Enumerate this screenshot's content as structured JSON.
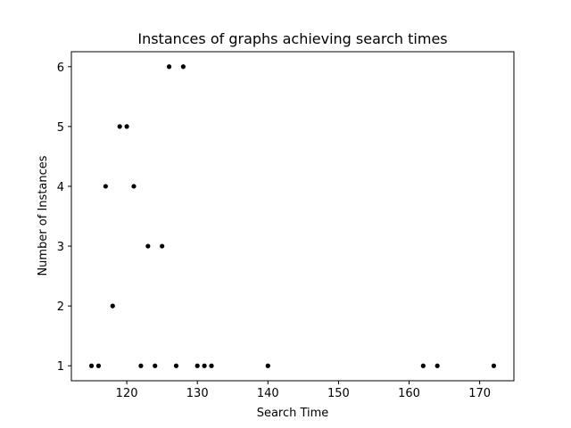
{
  "chart_data": {
    "type": "scatter",
    "title": "Instances of graphs achieving search times",
    "xlabel": "Search Time",
    "ylabel": "Number of Instances",
    "xlim": [
      112.15,
      174.85
    ],
    "ylim": [
      0.75,
      6.25
    ],
    "xticks": [
      120,
      130,
      140,
      150,
      160,
      170
    ],
    "yticks": [
      1,
      2,
      3,
      4,
      5,
      6
    ],
    "grid": false,
    "marker_color": "#000000",
    "points": [
      {
        "x": 115,
        "y": 1
      },
      {
        "x": 116,
        "y": 1
      },
      {
        "x": 117,
        "y": 4
      },
      {
        "x": 118,
        "y": 2
      },
      {
        "x": 119,
        "y": 5
      },
      {
        "x": 120,
        "y": 5
      },
      {
        "x": 121,
        "y": 4
      },
      {
        "x": 122,
        "y": 1
      },
      {
        "x": 123,
        "y": 3
      },
      {
        "x": 124,
        "y": 1
      },
      {
        "x": 125,
        "y": 3
      },
      {
        "x": 126,
        "y": 6
      },
      {
        "x": 127,
        "y": 1
      },
      {
        "x": 128,
        "y": 6
      },
      {
        "x": 130,
        "y": 1
      },
      {
        "x": 131,
        "y": 1
      },
      {
        "x": 132,
        "y": 1
      },
      {
        "x": 140,
        "y": 1
      },
      {
        "x": 162,
        "y": 1
      },
      {
        "x": 164,
        "y": 1
      },
      {
        "x": 172,
        "y": 1
      }
    ]
  }
}
